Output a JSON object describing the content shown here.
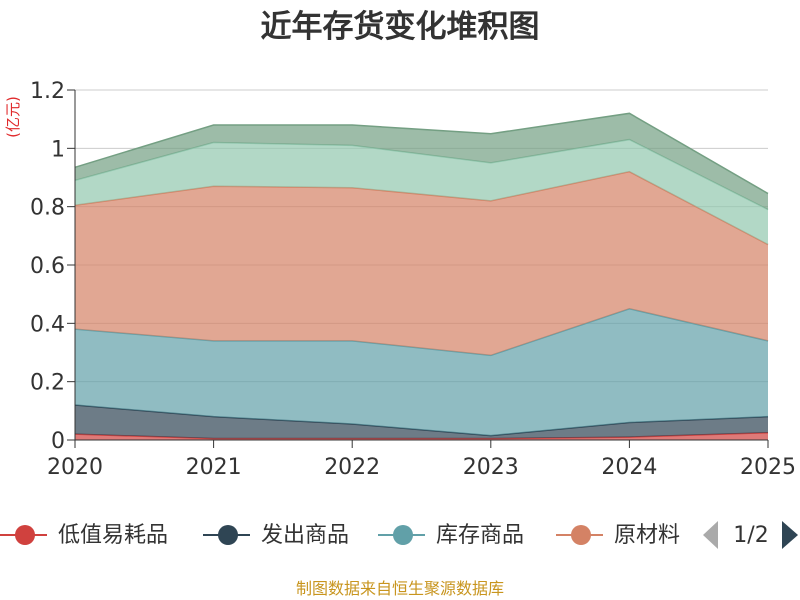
{
  "chart_data": {
    "type": "area",
    "stacked": true,
    "title": "近年存货变化堆积图",
    "ylabel": "(亿元)",
    "ylim": [
      0,
      1.2
    ],
    "yticks": [
      "0",
      "0.2",
      "0.4",
      "0.6",
      "0.8",
      "1",
      "1.2"
    ],
    "categories": [
      "2020",
      "2021",
      "2022",
      "2023",
      "2024",
      "2025"
    ],
    "grid": true,
    "legend_position": "bottom",
    "series": [
      {
        "name": "低值易耗品",
        "color": "#d0413e",
        "values": [
          0.02,
          0.005,
          0.005,
          0.005,
          0.01,
          0.025
        ]
      },
      {
        "name": "发出商品",
        "color": "#2f4554",
        "values": [
          0.1,
          0.075,
          0.05,
          0.01,
          0.05,
          0.055
        ]
      },
      {
        "name": "库存商品",
        "color": "#61a0a8",
        "values": [
          0.26,
          0.26,
          0.285,
          0.275,
          0.39,
          0.26
        ]
      },
      {
        "name": "原材料",
        "color": "#d48265",
        "values": [
          0.425,
          0.53,
          0.525,
          0.53,
          0.47,
          0.33
        ]
      },
      {
        "name": "",
        "color": "#91c7ae",
        "values": [
          0.085,
          0.15,
          0.145,
          0.13,
          0.11,
          0.12
        ]
      },
      {
        "name": "",
        "color": "#749f83",
        "values": [
          0.045,
          0.06,
          0.07,
          0.1,
          0.09,
          0.055
        ]
      }
    ],
    "legend": {
      "items": [
        "低值易耗品",
        "发出商品",
        "库存商品",
        "原材料"
      ],
      "page": "1/2"
    },
    "source": "制图数据来自恒生聚源数据库"
  }
}
